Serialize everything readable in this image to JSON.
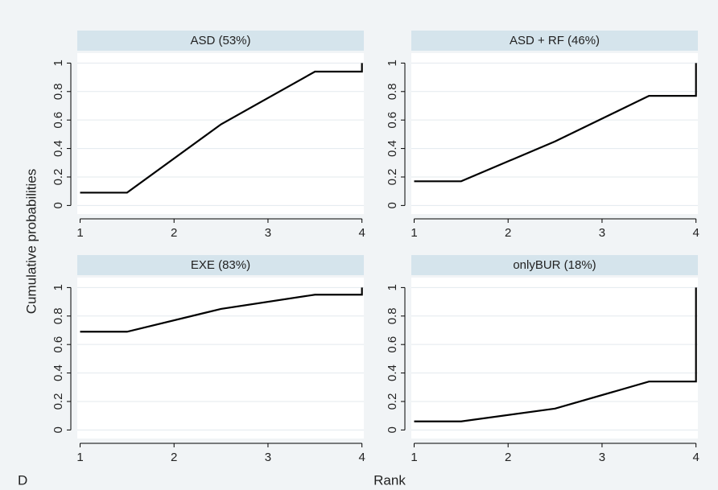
{
  "y_label": "Cumulative probabilities",
  "x_label": "Rank",
  "label": "D",
  "chart_data": [
    {
      "type": "line",
      "title": "ASD (53%)",
      "x": [
        1,
        1.5,
        2.5,
        3.5,
        4,
        4
      ],
      "values": [
        0.09,
        0.09,
        0.57,
        0.94,
        0.94,
        1
      ],
      "color": "#000000",
      "xlim": [
        0.97,
        4.02
      ],
      "ylim": [
        -0.06,
        1.07
      ],
      "xticks": [
        1,
        2,
        3,
        4
      ],
      "yticks": [
        0,
        0.2,
        0.4,
        0.6,
        0.8,
        1
      ],
      "grid": true
    },
    {
      "type": "line",
      "title": "ASD + RF (46%)",
      "x": [
        1,
        1.5,
        2.5,
        3.5,
        4,
        4
      ],
      "values": [
        0.17,
        0.17,
        0.45,
        0.77,
        0.77,
        1
      ],
      "color": "#000000",
      "xlim": [
        0.97,
        4.02
      ],
      "ylim": [
        -0.06,
        1.07
      ],
      "xticks": [
        1,
        2,
        3,
        4
      ],
      "yticks": [
        0,
        0.2,
        0.4,
        0.6,
        0.8,
        1
      ],
      "grid": true
    },
    {
      "type": "line",
      "title": "EXE (83%)",
      "x": [
        1,
        1.5,
        2.5,
        3.5,
        4,
        4
      ],
      "values": [
        0.69,
        0.69,
        0.85,
        0.95,
        0.95,
        1
      ],
      "color": "#000000",
      "xlim": [
        0.97,
        4.02
      ],
      "ylim": [
        -0.06,
        1.07
      ],
      "xticks": [
        1,
        2,
        3,
        4
      ],
      "yticks": [
        0,
        0.2,
        0.4,
        0.6,
        0.8,
        1
      ],
      "grid": true
    },
    {
      "type": "line",
      "title": "onlyBUR (18%)",
      "x": [
        1,
        1.5,
        2.5,
        3.5,
        4,
        4
      ],
      "values": [
        0.06,
        0.06,
        0.15,
        0.34,
        0.34,
        1
      ],
      "color": "#000000",
      "xlim": [
        0.97,
        4.02
      ],
      "ylim": [
        -0.06,
        1.07
      ],
      "xticks": [
        1,
        2,
        3,
        4
      ],
      "yticks": [
        0,
        0.2,
        0.4,
        0.6,
        0.8,
        1
      ],
      "grid": true
    }
  ]
}
